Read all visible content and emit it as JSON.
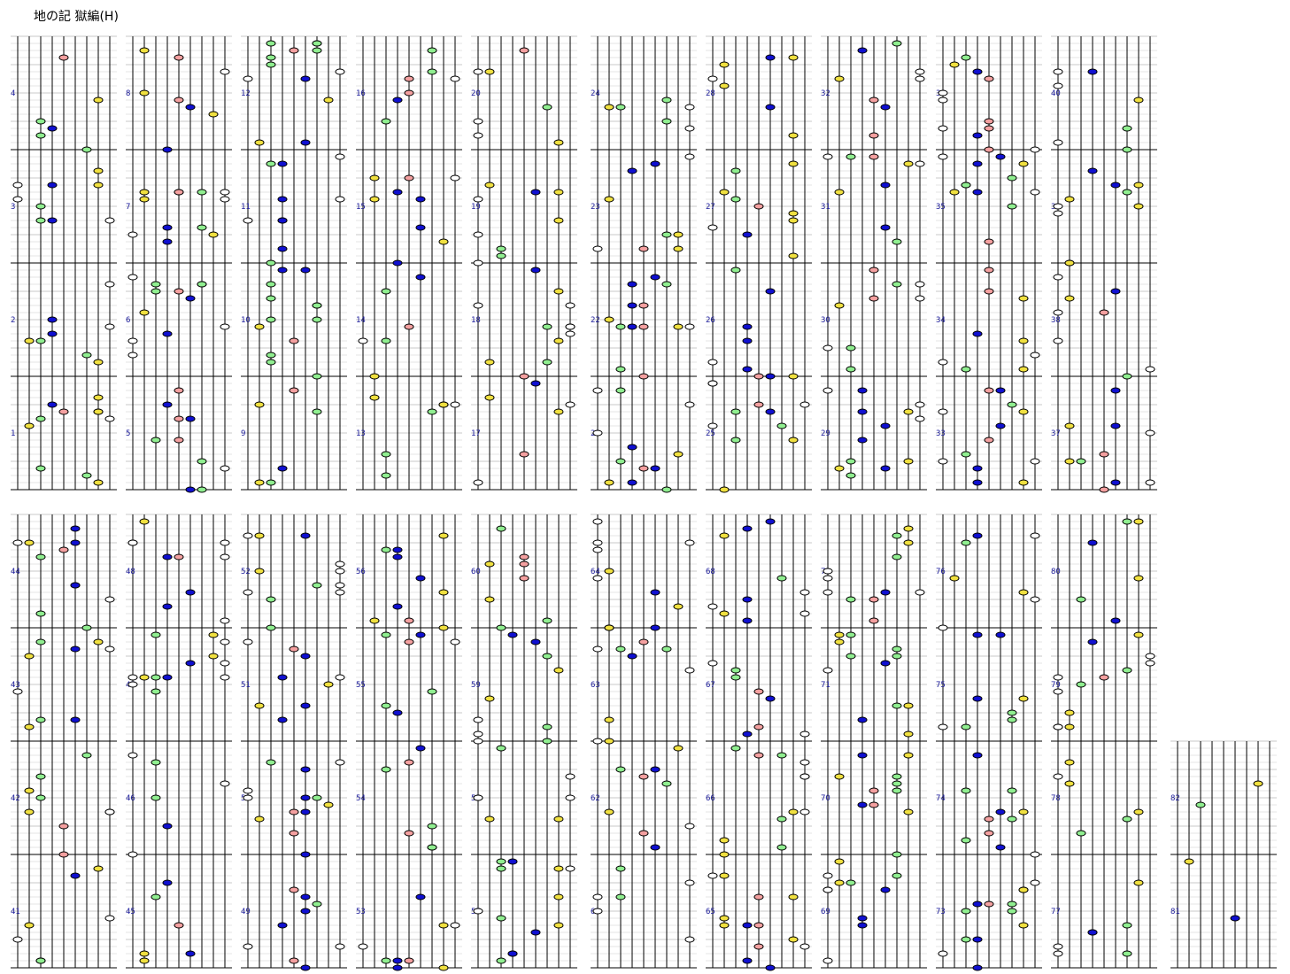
{
  "title": "地の記  獄編(H)",
  "chart_data": {
    "type": "rhythm-game-chart",
    "lanes": 9,
    "beats_per_measure": 4,
    "measure_numbers_first": 1,
    "measure_numbers_last": 82,
    "note_colors": {
      "white": "#ffffff",
      "yellow": "#f0e040",
      "green": "#90ee90",
      "blue": "#1010d0",
      "pink": "#f4a0a0"
    },
    "lane_colors": [
      "white",
      "yellow",
      "green",
      "blue",
      "pink",
      "blue",
      "green",
      "yellow",
      "white"
    ]
  }
}
